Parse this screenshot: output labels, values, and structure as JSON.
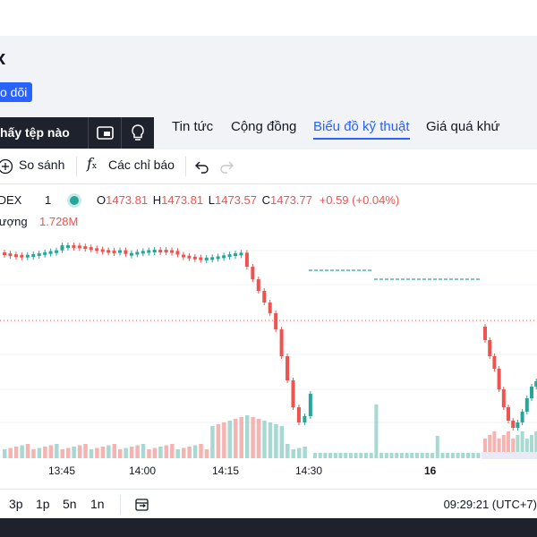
{
  "header": {
    "symbol_title": "x",
    "follow_button": "o dõi"
  },
  "file_bar": {
    "label": "hấy tệp nào"
  },
  "tabs": [
    {
      "label": "Tin tức",
      "active": false
    },
    {
      "label": "Cộng đồng",
      "active": false
    },
    {
      "label": "Biểu đồ kỹ thuật",
      "active": true
    },
    {
      "label": "Giá quá khứ",
      "active": false
    }
  ],
  "toolbar": {
    "compare_label": "So sánh",
    "indicators_label": "Các chỉ báo"
  },
  "legend": {
    "symbol": "IDEX",
    "interval": "1",
    "open_key": "O",
    "open": "1473.81",
    "high_key": "H",
    "high": "1473.81",
    "low_key": "L",
    "low": "1473.57",
    "close_key": "C",
    "close": "1473.77",
    "change": "+0.59 (+0.04%)",
    "volume_label": "lượng",
    "volume_value": "1.728M"
  },
  "time_axis": [
    "13:45",
    "14:00",
    "14:15",
    "14:30",
    "16"
  ],
  "range_buttons": [
    "3p",
    "1p",
    "5n",
    "1n"
  ],
  "clock": "09:29:21 (UTC+7)",
  "colors": {
    "up": "#26a69a",
    "down": "#ef5350",
    "accent": "#2962ff",
    "volume_up": "#a8d8d2",
    "volume_down": "#f5b3b1"
  },
  "chart_data": {
    "type": "candlestick",
    "x_ticks": [
      "13:45",
      "14:00",
      "14:15",
      "14:30",
      "16"
    ],
    "last_ohlc": {
      "open": 1473.81,
      "high": 1473.81,
      "low": 1473.57,
      "close": 1473.77
    },
    "change": 0.59,
    "change_percent": 0.04,
    "volume": "1.728M"
  }
}
